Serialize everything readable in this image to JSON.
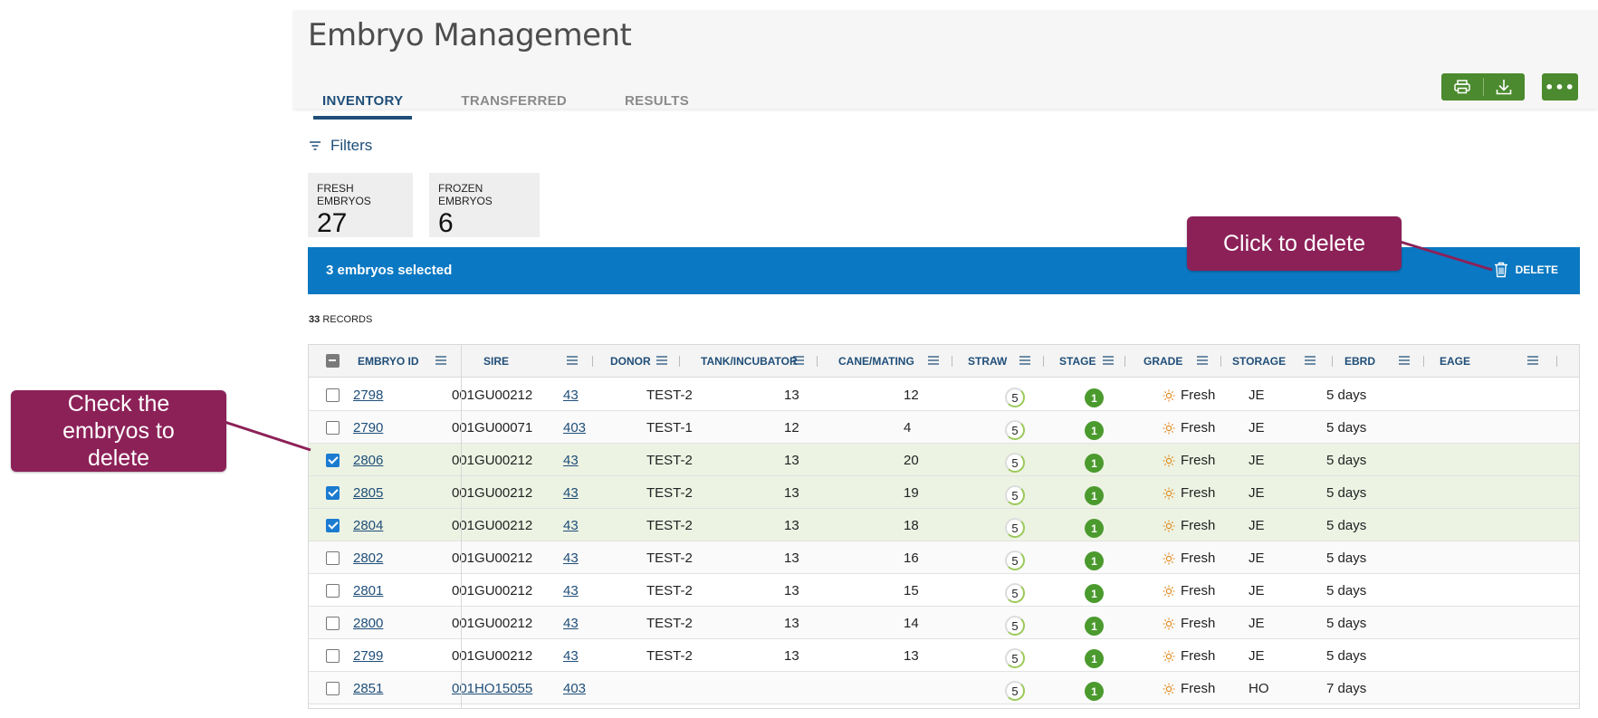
{
  "page": {
    "title": "Embryo Management",
    "tabs": [
      {
        "label": "INVENTORY",
        "active": true
      },
      {
        "label": "TRANSFERRED",
        "active": false
      },
      {
        "label": "RESULTS",
        "active": false
      }
    ],
    "actions": {
      "print_icon": "printer-icon",
      "download_icon": "download-icon",
      "more_label": "•••"
    }
  },
  "filters": {
    "label": "Filters",
    "icon": "filter-icon"
  },
  "summary_cards": [
    {
      "label": "FRESH EMBRYOS",
      "value": "27"
    },
    {
      "label": "FROZEN EMBRYOS",
      "value": "6"
    }
  ],
  "selection_bar": {
    "text": "3 embryos selected",
    "delete_label": "DELETE",
    "delete_icon": "trash-icon",
    "color": "#0a78c2"
  },
  "records": {
    "count": "33",
    "label": "RECORDS"
  },
  "table": {
    "columns": [
      "EMBRYO ID",
      "SIRE",
      "DONOR",
      "TANK/INCUBATOR",
      "CANE/MATING",
      "STRAW",
      "STAGE",
      "GRADE",
      "STORAGE",
      "EBRD",
      "EAGE"
    ],
    "rows": [
      {
        "checked": false,
        "embryo_id": "2798",
        "sire": "001GU00212",
        "sire_link": false,
        "donor": "43",
        "tank": "TEST-2",
        "cane": "13",
        "straw": "12",
        "stage": "5",
        "grade": "1",
        "storage": "Fresh",
        "ebrd": "JE",
        "eage": "5 days"
      },
      {
        "checked": false,
        "embryo_id": "2790",
        "sire": "001GU00071",
        "sire_link": false,
        "donor": "403",
        "tank": "TEST-1",
        "cane": "12",
        "straw": "4",
        "stage": "5",
        "grade": "1",
        "storage": "Fresh",
        "ebrd": "JE",
        "eage": "5 days"
      },
      {
        "checked": true,
        "embryo_id": "2806",
        "sire": "001GU00212",
        "sire_link": false,
        "donor": "43",
        "tank": "TEST-2",
        "cane": "13",
        "straw": "20",
        "stage": "5",
        "grade": "1",
        "storage": "Fresh",
        "ebrd": "JE",
        "eage": "5 days"
      },
      {
        "checked": true,
        "embryo_id": "2805",
        "sire": "001GU00212",
        "sire_link": false,
        "donor": "43",
        "tank": "TEST-2",
        "cane": "13",
        "straw": "19",
        "stage": "5",
        "grade": "1",
        "storage": "Fresh",
        "ebrd": "JE",
        "eage": "5 days"
      },
      {
        "checked": true,
        "embryo_id": "2804",
        "sire": "001GU00212",
        "sire_link": false,
        "donor": "43",
        "tank": "TEST-2",
        "cane": "13",
        "straw": "18",
        "stage": "5",
        "grade": "1",
        "storage": "Fresh",
        "ebrd": "JE",
        "eage": "5 days"
      },
      {
        "checked": false,
        "embryo_id": "2802",
        "sire": "001GU00212",
        "sire_link": false,
        "donor": "43",
        "tank": "TEST-2",
        "cane": "13",
        "straw": "16",
        "stage": "5",
        "grade": "1",
        "storage": "Fresh",
        "ebrd": "JE",
        "eage": "5 days"
      },
      {
        "checked": false,
        "embryo_id": "2801",
        "sire": "001GU00212",
        "sire_link": false,
        "donor": "43",
        "tank": "TEST-2",
        "cane": "13",
        "straw": "15",
        "stage": "5",
        "grade": "1",
        "storage": "Fresh",
        "ebrd": "JE",
        "eage": "5 days"
      },
      {
        "checked": false,
        "embryo_id": "2800",
        "sire": "001GU00212",
        "sire_link": false,
        "donor": "43",
        "tank": "TEST-2",
        "cane": "13",
        "straw": "14",
        "stage": "5",
        "grade": "1",
        "storage": "Fresh",
        "ebrd": "JE",
        "eage": "5 days"
      },
      {
        "checked": false,
        "embryo_id": "2799",
        "sire": "001GU00212",
        "sire_link": false,
        "donor": "43",
        "tank": "TEST-2",
        "cane": "13",
        "straw": "13",
        "stage": "5",
        "grade": "1",
        "storage": "Fresh",
        "ebrd": "JE",
        "eage": "5 days"
      },
      {
        "checked": false,
        "embryo_id": "2851",
        "sire": "001HO15055",
        "sire_link": true,
        "donor": "403",
        "tank": "",
        "cane": "",
        "straw": "",
        "stage": "5",
        "grade": "1",
        "storage": "Fresh",
        "ebrd": "HO",
        "eage": "7 days"
      }
    ]
  },
  "callouts": [
    {
      "text": "Click to delete"
    },
    {
      "text": "Check the embryos to delete"
    }
  ],
  "colors": {
    "accent_green": "#4b8a2e",
    "tab_active": "#1f4e78",
    "callout": "#8c2158",
    "selected_row": "#ecf3e3"
  }
}
